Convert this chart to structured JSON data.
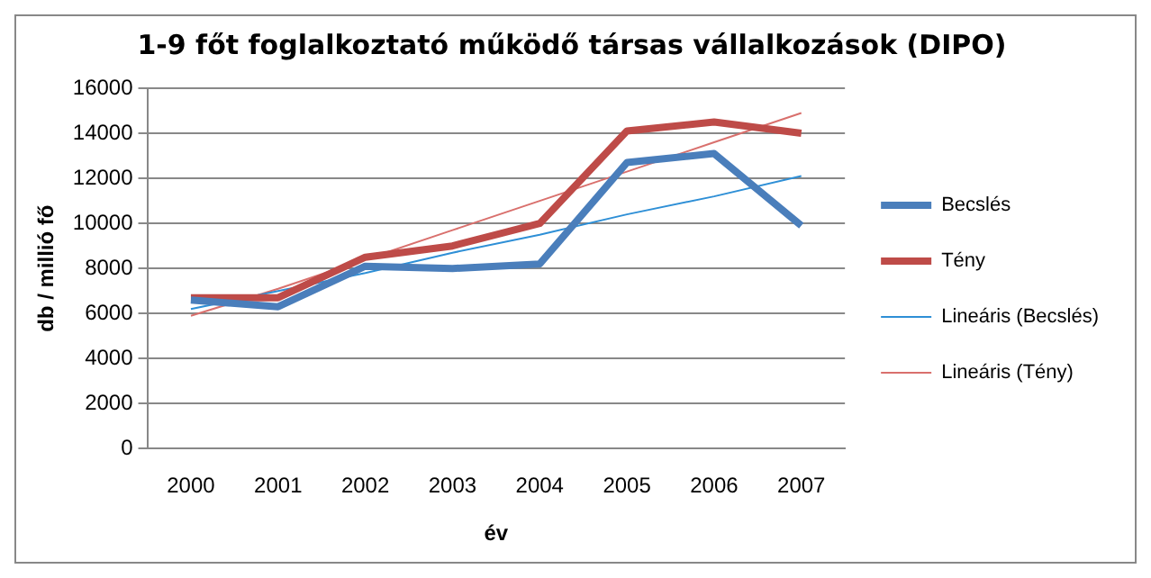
{
  "chart_data": {
    "type": "line",
    "title": "1-9 főt foglalkoztató működő társas vállalkozások (DIPO)",
    "xlabel": "év",
    "ylabel": "db / millió fő",
    "categories": [
      "2000",
      "2001",
      "2002",
      "2003",
      "2004",
      "2005",
      "2006",
      "2007"
    ],
    "series": [
      {
        "name": "Becslés",
        "color": "#4a7ebb",
        "values": [
          6600,
          6300,
          8100,
          8000,
          8200,
          12700,
          13100,
          9900
        ]
      },
      {
        "name": "Tény",
        "color": "#be4b48",
        "values": [
          6700,
          6700,
          8500,
          9000,
          10000,
          14100,
          14500,
          14000
        ]
      },
      {
        "name": "Lineáris (Becslés)",
        "color": "#2e8fd6",
        "values": [
          6200,
          7000,
          7800,
          8700,
          9500,
          10400,
          11200,
          12100
        ]
      },
      {
        "name": "Lineáris (Tény)",
        "color": "#d9706d",
        "values": [
          5900,
          7100,
          8400,
          9700,
          11000,
          12300,
          13600,
          14900
        ]
      }
    ],
    "ylim": [
      0,
      16000
    ],
    "yticks": [
      0,
      2000,
      4000,
      6000,
      8000,
      10000,
      12000,
      14000,
      16000
    ],
    "grid": "y",
    "legend": "right",
    "marker": "none"
  }
}
